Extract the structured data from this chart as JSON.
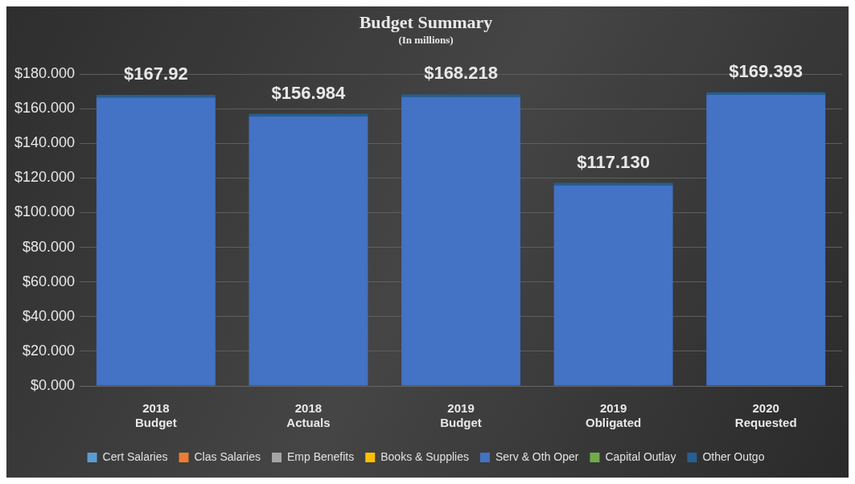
{
  "chart_data": {
    "type": "bar",
    "title": "Budget Summary",
    "subtitle": "(In millions)",
    "stacked": true,
    "categories": [
      "2018 Budget",
      "2018 Actuals",
      "2019 Budget",
      "2019 Obligated",
      "2020 Requested"
    ],
    "series": [
      {
        "name": "Cert Salaries",
        "color": "#5b9bd5",
        "values": [
          0,
          0,
          0,
          0,
          0
        ]
      },
      {
        "name": "Clas Salaries",
        "color": "#ed7d31",
        "values": [
          0,
          0,
          0,
          0,
          0
        ]
      },
      {
        "name": "Emp Benefits",
        "color": "#a5a5a5",
        "values": [
          0,
          0,
          0,
          0,
          0
        ]
      },
      {
        "name": "Books & Supplies",
        "color": "#ffc000",
        "values": [
          0,
          0,
          0,
          0,
          0
        ]
      },
      {
        "name": "Serv & Oth Oper",
        "color": "#4472c4",
        "values": [
          166.42,
          155.484,
          166.718,
          115.63,
          167.893
        ]
      },
      {
        "name": "Capital Outlay",
        "color": "#70ad47",
        "values": [
          0,
          0,
          0,
          0,
          0
        ]
      },
      {
        "name": "Other Outgo",
        "color": "#255e91",
        "values": [
          1.5,
          1.5,
          1.5,
          1.5,
          1.5
        ]
      }
    ],
    "totals": [
      "$167.92",
      "$156.984",
      "$168.218",
      "$117.130",
      "$169.393"
    ],
    "ylim": [
      0,
      180
    ],
    "yticks": [
      {
        "value": 0,
        "label": "$0.000"
      },
      {
        "value": 20,
        "label": "$20.000"
      },
      {
        "value": 40,
        "label": "$40.000"
      },
      {
        "value": 60,
        "label": "$60.000"
      },
      {
        "value": 80,
        "label": "$80.000"
      },
      {
        "value": 100,
        "label": "$100.000"
      },
      {
        "value": 120,
        "label": "$120.000"
      },
      {
        "value": 140,
        "label": "$140.000"
      },
      {
        "value": 160,
        "label": "$160.000"
      },
      {
        "value": 180,
        "label": "$180.000"
      }
    ],
    "grid": "y",
    "legend": "bottom"
  }
}
